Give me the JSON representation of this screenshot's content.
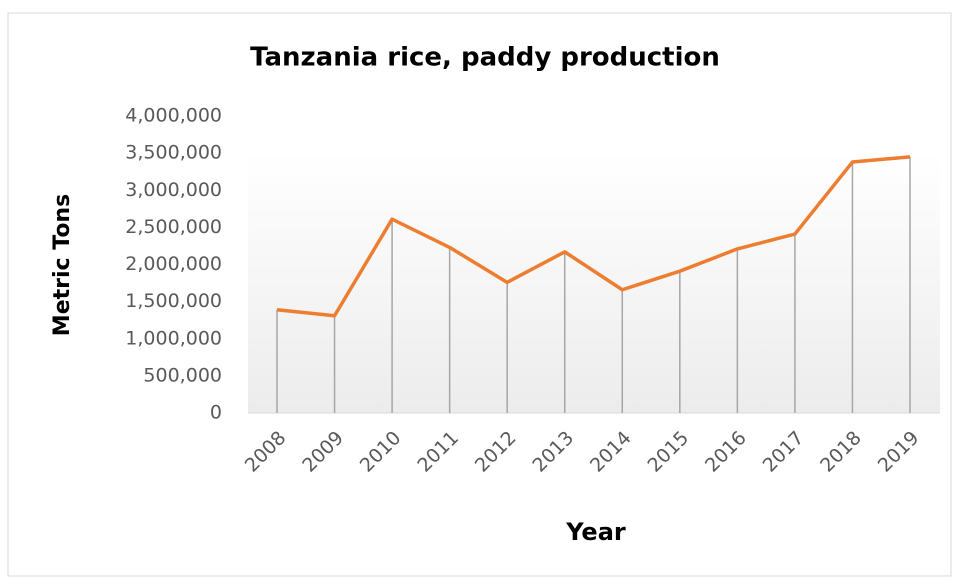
{
  "chart_data": {
    "type": "line",
    "title": "Tanzania rice,  paddy  production",
    "x_label": "Year",
    "y_label": "Metric Tons",
    "categories": [
      "2008",
      "2009",
      "2010",
      "2011",
      "2012",
      "2013",
      "2014",
      "2015",
      "2016",
      "2017",
      "2018",
      "2019"
    ],
    "series": [
      {
        "name": "Rice, paddy production",
        "color": "#ed7d31",
        "values": [
          1390000,
          1310000,
          2610000,
          2230000,
          1760000,
          2170000,
          1660000,
          1910000,
          2210000,
          2410000,
          3380000,
          3450000
        ]
      }
    ],
    "ylim": [
      0,
      4000000
    ],
    "yticks": [
      {
        "value": 0,
        "label": "0"
      },
      {
        "value": 500000,
        "label": "500,000"
      },
      {
        "value": 1000000,
        "label": "1,000,000"
      },
      {
        "value": 1500000,
        "label": "1,500,000"
      },
      {
        "value": 2000000,
        "label": "2,000,000"
      },
      {
        "value": 2500000,
        "label": "2,500,000"
      },
      {
        "value": 3000000,
        "label": "3,000,000"
      },
      {
        "value": 3500000,
        "label": "3,500,000"
      },
      {
        "value": 4000000,
        "label": "4,000,000"
      }
    ],
    "drop_lines": true,
    "grid": false
  }
}
